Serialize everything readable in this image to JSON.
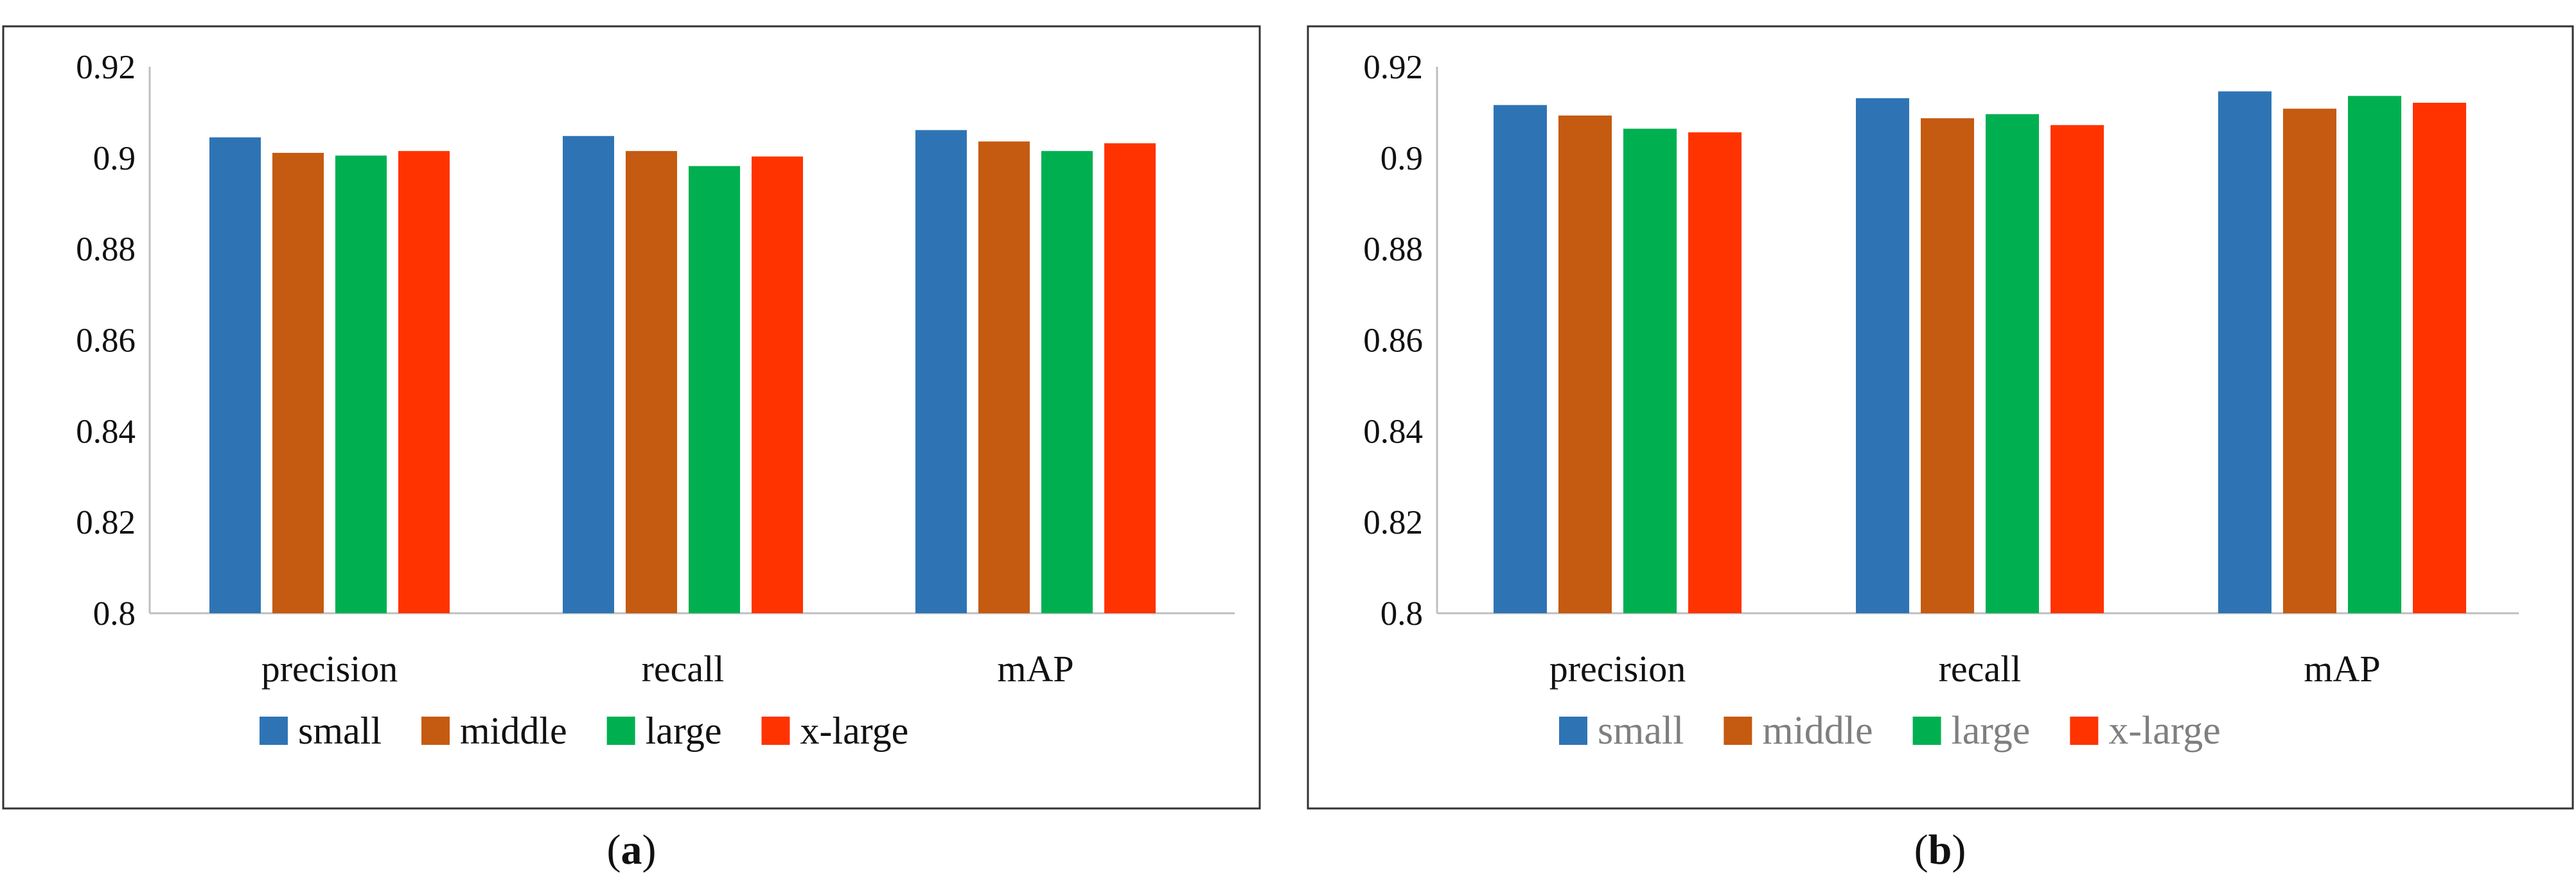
{
  "chart_data": [
    {
      "id": "a",
      "type": "bar",
      "panel_label": "a",
      "categories": [
        "precision",
        "recall",
        "mAP"
      ],
      "series": [
        {
          "name": "small",
          "color": "#2e74b5",
          "values": [
            0.9045,
            0.9048,
            0.9061
          ]
        },
        {
          "name": "middle",
          "color": "#c55a11",
          "values": [
            0.9011,
            0.9015,
            0.9036
          ]
        },
        {
          "name": "large",
          "color": "#00b050",
          "values": [
            0.9005,
            0.8982,
            0.9015
          ]
        },
        {
          "name": "x-large",
          "color": "#ff3300",
          "values": [
            0.9015,
            0.9003,
            0.9032
          ]
        }
      ],
      "ylim": [
        0.8,
        0.92
      ],
      "yticks": [
        "0.8",
        "0.82",
        "0.84",
        "0.86",
        "0.88",
        "0.9",
        "0.92"
      ],
      "legend_position": "bottom",
      "grid": false
    },
    {
      "id": "b",
      "type": "bar",
      "panel_label": "b",
      "categories": [
        "precision",
        "recall",
        "mAP"
      ],
      "series": [
        {
          "name": "small",
          "color": "#2e74b5",
          "values": [
            0.9116,
            0.9131,
            0.9146
          ]
        },
        {
          "name": "middle",
          "color": "#c55a11",
          "values": [
            0.9093,
            0.9087,
            0.9108
          ]
        },
        {
          "name": "large",
          "color": "#00b050",
          "values": [
            0.9064,
            0.9096,
            0.9136
          ]
        },
        {
          "name": "x-large",
          "color": "#ff3300",
          "values": [
            0.9056,
            0.9072,
            0.9121
          ]
        }
      ],
      "ylim": [
        0.8,
        0.92
      ],
      "yticks": [
        "0.8",
        "0.82",
        "0.84",
        "0.86",
        "0.88",
        "0.9",
        "0.92"
      ],
      "legend_position": "bottom",
      "grid": false
    }
  ]
}
